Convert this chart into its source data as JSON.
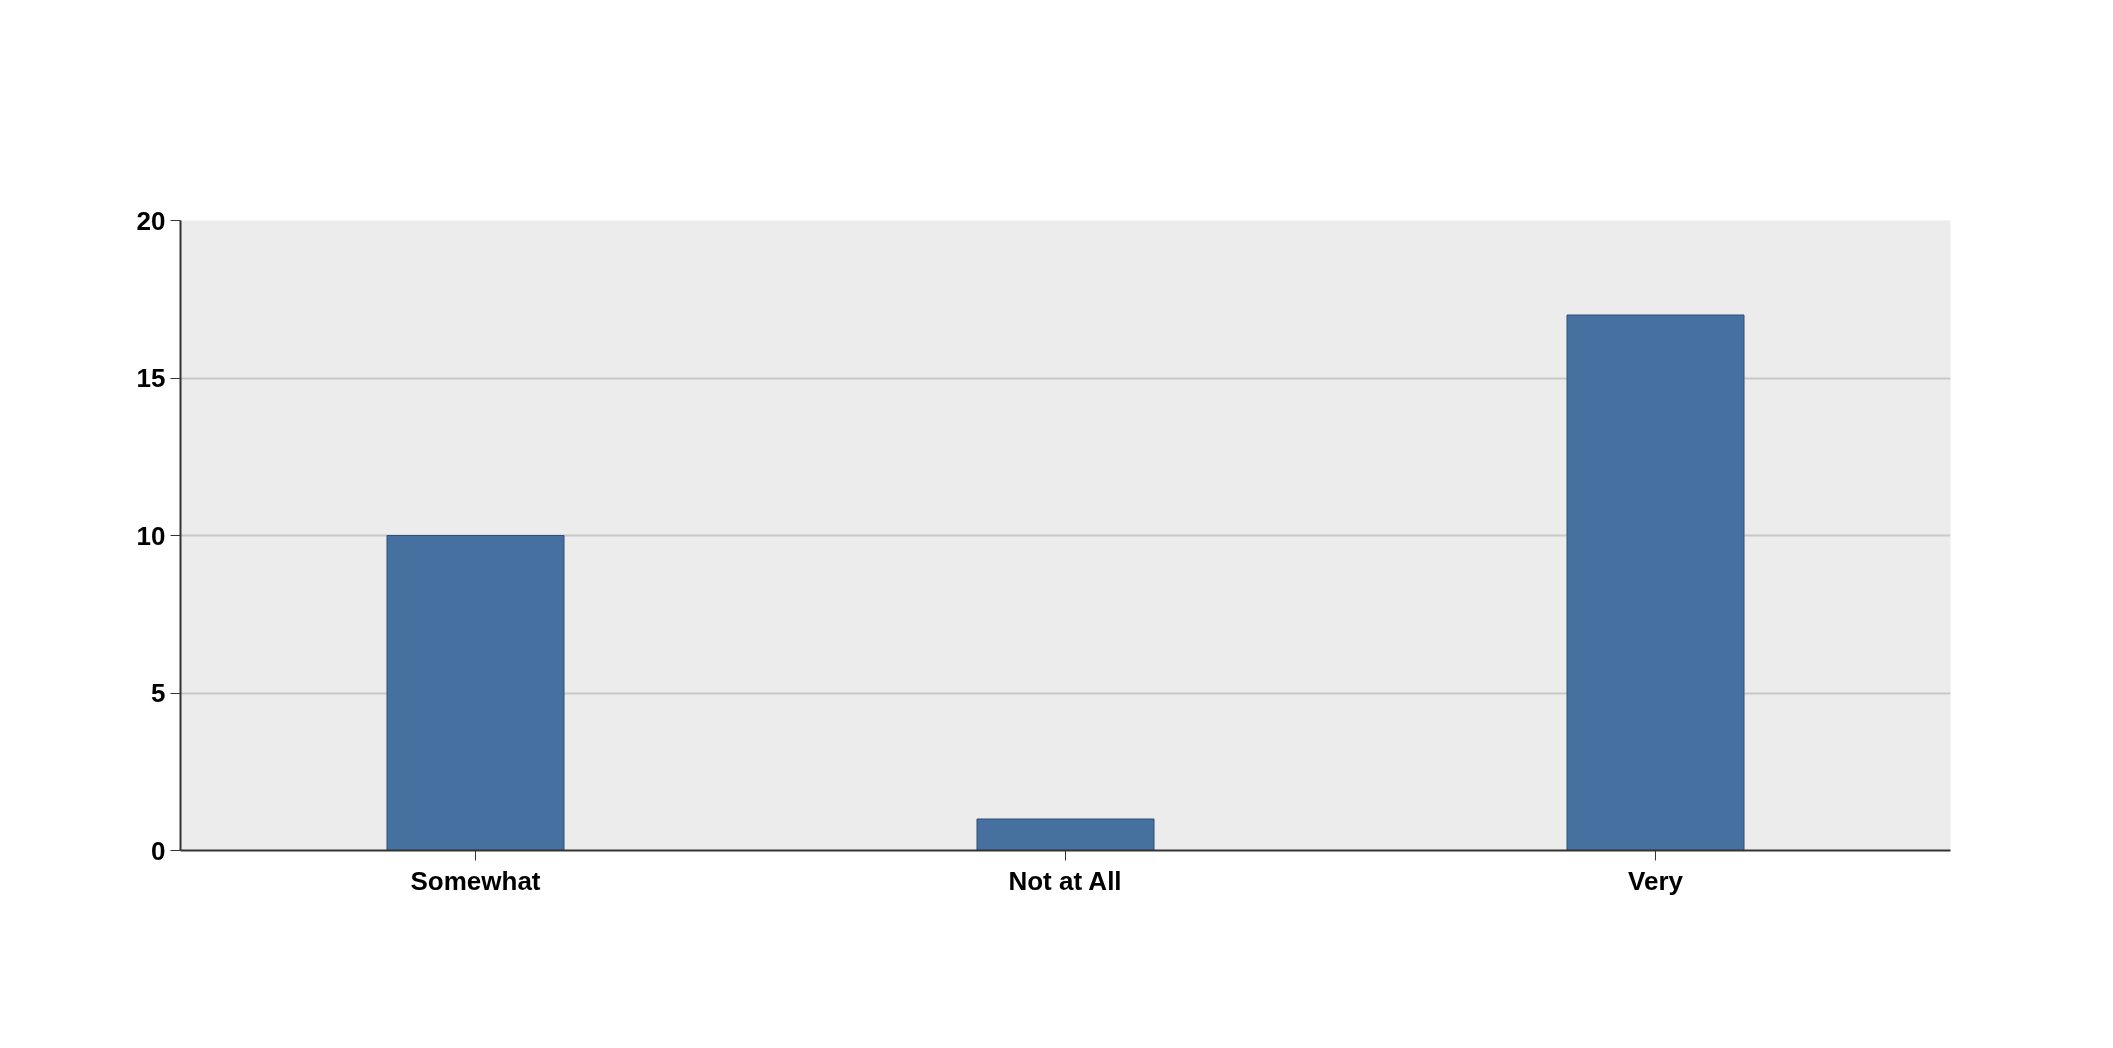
{
  "chart_data": {
    "type": "bar",
    "categories": [
      "Somewhat",
      "Not at All",
      "Very"
    ],
    "values": [
      10,
      1,
      17
    ],
    "color": "#46709f",
    "ylim": [
      0,
      20
    ],
    "yticks": [
      0,
      5,
      10,
      15,
      20
    ],
    "grid": "y"
  }
}
